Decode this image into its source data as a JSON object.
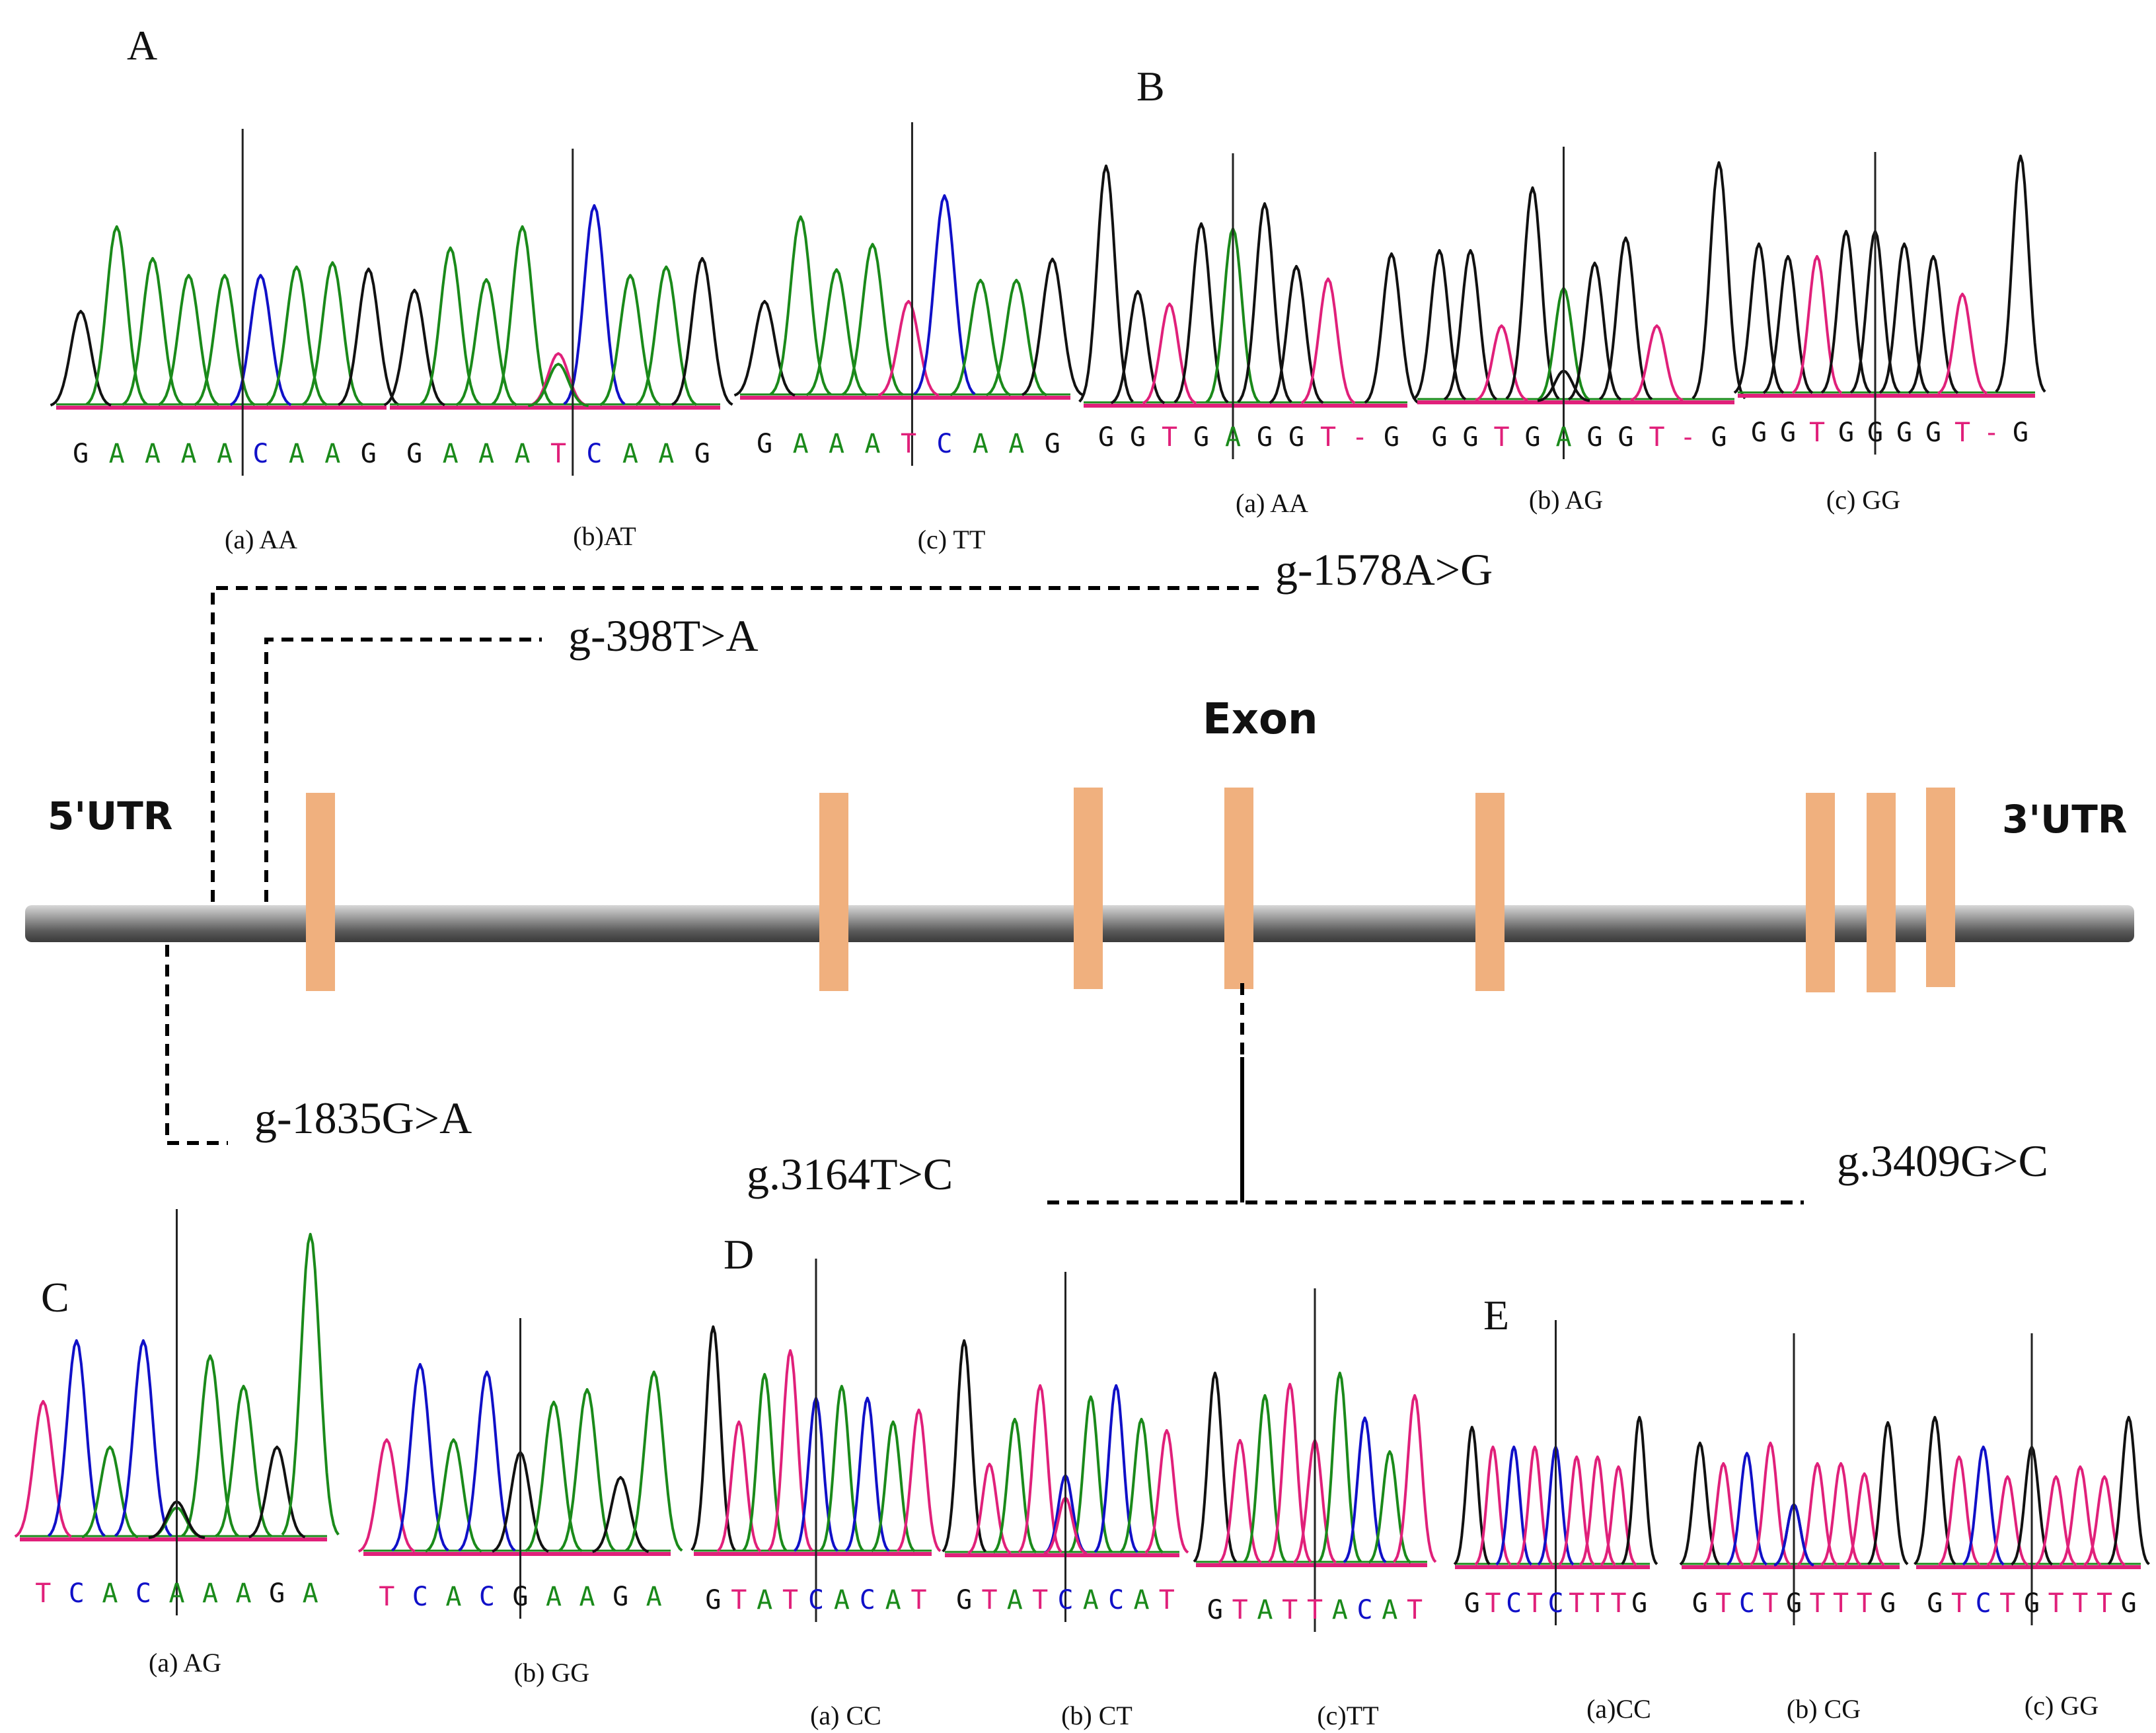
{
  "panels": {
    "A": "A",
    "B": "B",
    "C": "C",
    "D": "D",
    "E": "E"
  },
  "gene": {
    "exon_label": "Exon",
    "utr5": "5'UTR",
    "utr3": "3'UTR",
    "exon_count": 8
  },
  "mutations": {
    "m1578": "g-1578A>G",
    "m398": "g-398T>A",
    "m1835": "g-1835G>A",
    "m3164": "g.3164T>C",
    "m3409": "g.3409G>C"
  },
  "colors": {
    "A": "#1a8a1a",
    "C": "#1010c8",
    "G": "#111111",
    "T": "#e0207a",
    "baseline": "#e0207a",
    "exon": "#f0b07e"
  },
  "traces": [
    {
      "id": "A-a",
      "panel": "A",
      "bases": [
        "G",
        "A",
        "A",
        "A",
        "A",
        "C",
        "A",
        "A",
        "G"
      ],
      "heights": [
        0.45,
        0.85,
        0.7,
        0.62,
        0.62,
        0.62,
        0.66,
        0.68,
        0.65
      ],
      "label": "(a) AA",
      "cursor": 5,
      "het_minor": null
    },
    {
      "id": "A-b",
      "panel": "A",
      "bases": [
        "G",
        "A",
        "A",
        "A",
        "T",
        "C",
        "A",
        "A",
        "G"
      ],
      "heights": [
        0.55,
        0.75,
        0.6,
        0.85,
        0.25,
        0.95,
        0.62,
        0.66,
        0.7
      ],
      "label": "(b)AT",
      "cursor": 4.9,
      "het_minor": {
        "index": 4,
        "base": "A",
        "height": 0.2
      }
    },
    {
      "id": "A-c",
      "panel": "A",
      "bases": [
        "G",
        "A",
        "A",
        "A",
        "T",
        "C",
        "A",
        "A",
        "G"
      ],
      "heights": [
        0.45,
        0.85,
        0.6,
        0.72,
        0.45,
        0.95,
        0.55,
        0.55,
        0.65
      ],
      "label": "(c) TT",
      "cursor": 4.6,
      "het_minor": null
    },
    {
      "id": "B-a",
      "panel": "B",
      "bases": [
        "G",
        "G",
        "T",
        "G",
        "A",
        "G",
        "G",
        "T",
        "-",
        "G"
      ],
      "heights": [
        0.95,
        0.45,
        0.4,
        0.72,
        0.7,
        0.8,
        0.55,
        0.5,
        0,
        0.6
      ],
      "label": "(a) AA",
      "cursor": 4.5,
      "het_minor": null
    },
    {
      "id": "B-b",
      "panel": "B",
      "bases": [
        "G",
        "G",
        "T",
        "G",
        "A",
        "G",
        "G",
        "T",
        "-",
        "G"
      ],
      "heights": [
        0.6,
        0.6,
        0.3,
        0.85,
        0.45,
        0.55,
        0.65,
        0.3,
        0,
        0.95
      ],
      "label": "(b) AG",
      "cursor": 4.5,
      "het_minor": {
        "index": 4,
        "base": "G",
        "height": 0.12
      }
    },
    {
      "id": "B-c",
      "panel": "B",
      "bases": [
        "G",
        "G",
        "T",
        "G",
        "G",
        "G",
        "G",
        "T",
        "-",
        "G"
      ],
      "heights": [
        0.6,
        0.55,
        0.55,
        0.65,
        0.65,
        0.6,
        0.55,
        0.4,
        0,
        0.95
      ],
      "label": "(c) GG",
      "cursor": 4.5,
      "het_minor": null
    },
    {
      "id": "C-a",
      "panel": "C",
      "bases": [
        "T",
        "C",
        "A",
        "C",
        "A",
        "A",
        "A",
        "G",
        "A"
      ],
      "heights": [
        0.45,
        0.65,
        0.3,
        0.65,
        0.1,
        0.6,
        0.5,
        0.3,
        1.0
      ],
      "label": "(a) AG",
      "cursor": 4.5,
      "het_minor": {
        "index": 4,
        "base": "G",
        "height": 0.12
      }
    },
    {
      "id": "C-b",
      "panel": "C",
      "bases": [
        "T",
        "C",
        "A",
        "C",
        "G",
        "A",
        "A",
        "G",
        "A"
      ],
      "heights": [
        0.45,
        0.75,
        0.45,
        0.72,
        0.4,
        0.6,
        0.65,
        0.3,
        0.72
      ],
      "label": "(b) GG",
      "cursor": 4.5,
      "het_minor": null
    },
    {
      "id": "D-a",
      "panel": "D",
      "bases": [
        "G",
        "T",
        "A",
        "T",
        "C",
        "A",
        "C",
        "A",
        "T"
      ],
      "heights": [
        0.95,
        0.55,
        0.75,
        0.85,
        0.65,
        0.7,
        0.65,
        0.55,
        0.6
      ],
      "label": "(a) CC",
      "cursor": 4.5,
      "het_minor": null
    },
    {
      "id": "D-b",
      "panel": "D",
      "bases": [
        "G",
        "T",
        "A",
        "T",
        "C",
        "A",
        "C",
        "A",
        "T"
      ],
      "heights": [
        0.95,
        0.4,
        0.6,
        0.75,
        0.35,
        0.7,
        0.75,
        0.6,
        0.55
      ],
      "label": "(b) CT",
      "cursor": 4.5,
      "het_minor": {
        "index": 4,
        "base": "T",
        "height": 0.25
      }
    },
    {
      "id": "D-c",
      "panel": "D",
      "bases": [
        "G",
        "T",
        "A",
        "T",
        "T",
        "A",
        "C",
        "A",
        "T"
      ],
      "heights": [
        0.85,
        0.55,
        0.75,
        0.8,
        0.55,
        0.85,
        0.65,
        0.5,
        0.75
      ],
      "label": "(c)TT",
      "cursor": 4.5,
      "het_minor": null
    },
    {
      "id": "E-a",
      "panel": "E",
      "bases": [
        "G",
        "T",
        "C",
        "T",
        "C",
        "T",
        "T",
        "T",
        "G"
      ],
      "heights": [
        0.7,
        0.6,
        0.6,
        0.6,
        0.6,
        0.55,
        0.55,
        0.5,
        0.75
      ],
      "label": "(a)CC",
      "cursor": 4.5,
      "het_minor": null
    },
    {
      "id": "E-b",
      "panel": "E",
      "bases": [
        "G",
        "T",
        "C",
        "T",
        "G",
        "T",
        "T",
        "T",
        "G"
      ],
      "heights": [
        0.6,
        0.5,
        0.55,
        0.6,
        0.3,
        0.5,
        0.5,
        0.45,
        0.7
      ],
      "label": "(b) CG",
      "cursor": 4.5,
      "het_minor": {
        "index": 4,
        "base": "C",
        "height": 0.3
      }
    },
    {
      "id": "E-c",
      "panel": "E",
      "bases": [
        "G",
        "T",
        "C",
        "T",
        "G",
        "T",
        "T",
        "T",
        "G"
      ],
      "heights": [
        0.75,
        0.55,
        0.6,
        0.45,
        0.6,
        0.45,
        0.5,
        0.45,
        0.75
      ],
      "label": "(c) GG",
      "cursor": 4.5,
      "het_minor": null
    }
  ]
}
